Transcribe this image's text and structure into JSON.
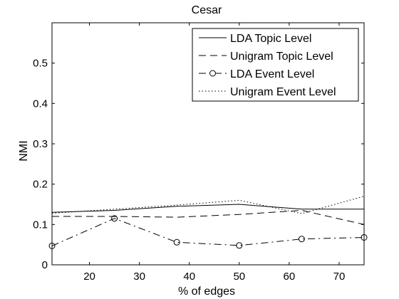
{
  "chart_data": {
    "type": "line",
    "title": "Cesar",
    "xlabel": "% of edges",
    "ylabel": "NMI",
    "xlim": [
      12.5,
      75
    ],
    "ylim": [
      0,
      0.6
    ],
    "x_ticks": [
      20,
      30,
      40,
      50,
      60,
      70
    ],
    "y_ticks": [
      0,
      0.1,
      0.2,
      0.3,
      0.4,
      0.5
    ],
    "x_tick_labels": [
      "20",
      "30",
      "40",
      "50",
      "60",
      "70"
    ],
    "y_tick_labels": [
      "0",
      "0.1",
      "0.2",
      "0.3",
      "0.4",
      "0.5"
    ],
    "x": [
      12.5,
      25,
      37.5,
      50,
      62.5,
      75
    ],
    "legend_position": "top-right",
    "grid": false,
    "series": [
      {
        "name": "LDA Topic Level",
        "style": "solid",
        "marker": "none",
        "values": [
          0.13,
          0.135,
          0.145,
          0.15,
          0.138,
          0.138
        ]
      },
      {
        "name": "Unigram Topic Level",
        "style": "dashed",
        "marker": "none",
        "values": [
          0.12,
          0.12,
          0.118,
          0.125,
          0.135,
          0.1
        ]
      },
      {
        "name": "LDA Event Level",
        "style": "dashdot",
        "marker": "circle",
        "values": [
          0.047,
          0.115,
          0.056,
          0.048,
          0.064,
          0.068
        ]
      },
      {
        "name": "Unigram Event Level",
        "style": "dotted",
        "marker": "none",
        "values": [
          0.128,
          0.138,
          0.148,
          0.16,
          0.127,
          0.17
        ]
      }
    ]
  }
}
